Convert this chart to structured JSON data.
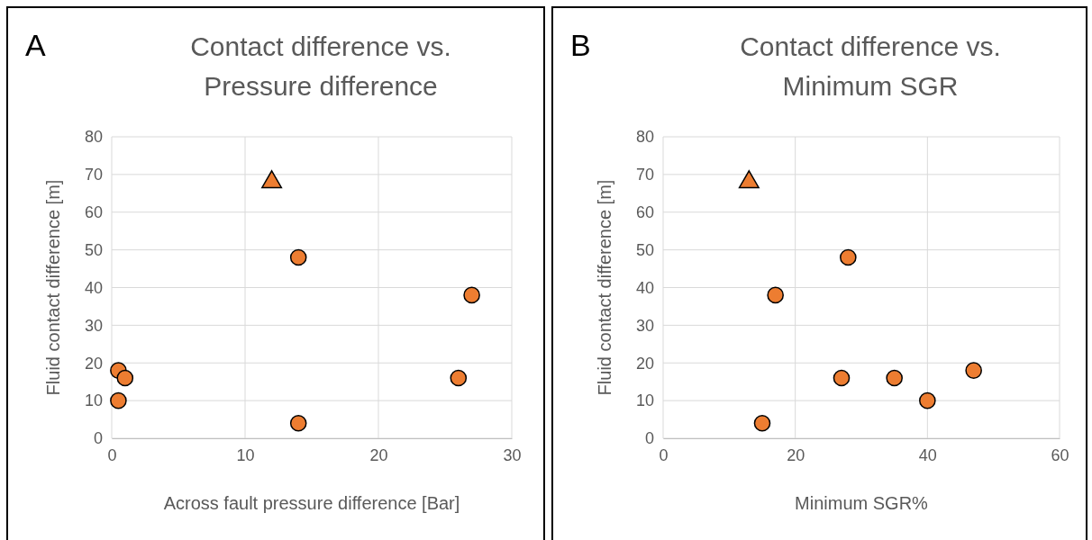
{
  "chart_data": [
    {
      "type": "scatter",
      "title": "Contact difference vs. Pressure difference",
      "xlabel": "Across fault pressure difference [Bar]",
      "ylabel": "Fluid contact difference [m]",
      "annotations": [
        "A"
      ],
      "xlim": [
        0,
        30
      ],
      "xticks": [
        0,
        10,
        20,
        30
      ],
      "ylim": [
        0,
        80
      ],
      "yticks": [
        0,
        10,
        20,
        30,
        40,
        50,
        60,
        70,
        80
      ],
      "grid": true,
      "series": [
        {
          "color": "#ed7d31",
          "marker": "circle",
          "x": [
            14,
            27,
            26,
            14,
            0.5,
            1,
            0.5
          ],
          "values": [
            48,
            38,
            16,
            4,
            18,
            16,
            10
          ]
        },
        {
          "color": "#ed7d31",
          "marker": "triangle",
          "x": [
            12
          ],
          "values": [
            68
          ]
        }
      ]
    },
    {
      "type": "scatter",
      "title": "Contact difference vs. Minimum SGR",
      "xlabel": "Minimum SGR%",
      "ylabel": "Fluid contact difference [m]",
      "annotations": [
        "B"
      ],
      "xlim": [
        0,
        60
      ],
      "xticks": [
        0,
        20,
        40,
        60
      ],
      "ylim": [
        0,
        80
      ],
      "yticks": [
        0,
        10,
        20,
        30,
        40,
        50,
        60,
        70,
        80
      ],
      "grid": true,
      "series": [
        {
          "color": "#ed7d31",
          "marker": "circle",
          "x": [
            28,
            17,
            27,
            35,
            40,
            47,
            15
          ],
          "values": [
            48,
            38,
            16,
            16,
            10,
            18,
            4
          ]
        },
        {
          "color": "#ed7d31",
          "marker": "triangle",
          "x": [
            13
          ],
          "values": [
            68
          ]
        }
      ]
    }
  ]
}
